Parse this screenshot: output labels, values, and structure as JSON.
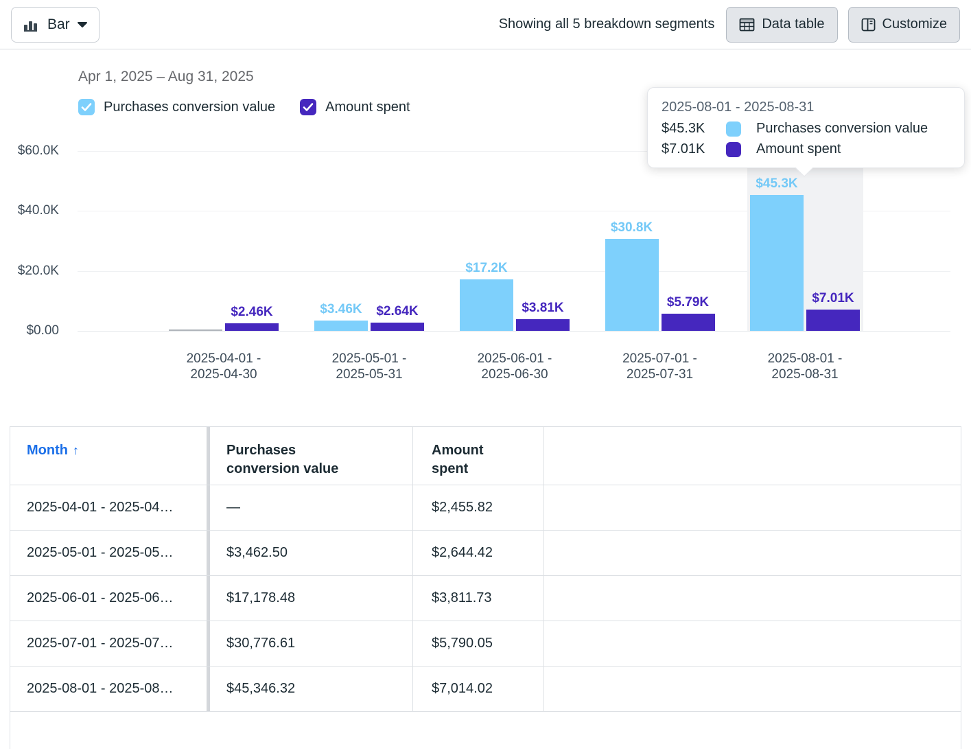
{
  "toolbar": {
    "chart_type_label": "Bar",
    "breakdown_text": "Showing all 5 breakdown segments",
    "data_table_label": "Data table",
    "customize_label": "Customize"
  },
  "chart": {
    "date_range": "Apr 1, 2025 – Aug 31, 2025"
  },
  "legend": {
    "items": [
      {
        "label": "Purchases conversion value",
        "color": "#7ed0fc",
        "checked": true
      },
      {
        "label": "Amount spent",
        "color": "#4527be",
        "checked": true
      }
    ]
  },
  "chart_data": {
    "type": "bar",
    "title": "Apr 1, 2025 – Aug 31, 2025",
    "ylim": [
      0,
      60000
    ],
    "grid": true,
    "legend_position": "top",
    "y_ticks": [
      {
        "value": 60000,
        "label": "$60.0K"
      },
      {
        "value": 40000,
        "label": "$40.0K"
      },
      {
        "value": 20000,
        "label": "$20.0K"
      },
      {
        "value": 0,
        "label": "$0.00"
      }
    ],
    "categories": [
      "2025-04-01 - 2025-04-30",
      "2025-05-01 - 2025-05-31",
      "2025-06-01 - 2025-06-30",
      "2025-07-01 - 2025-07-31",
      "2025-08-01 - 2025-08-31"
    ],
    "series": [
      {
        "name": "Purchases conversion value",
        "color": "#7ed0fc",
        "label_color": "#74c9f7",
        "values": [
          null,
          3462.5,
          17178.48,
          30776.61,
          45346.32
        ],
        "bar_labels": [
          "",
          "$3.46K",
          "$17.2K",
          "$30.8K",
          "$45.3K"
        ]
      },
      {
        "name": "Amount spent",
        "color": "#4527be",
        "label_color": "#4527be",
        "values": [
          2455.82,
          2644.42,
          3811.73,
          5790.05,
          7014.02
        ],
        "bar_labels": [
          "$2.46K",
          "$2.64K",
          "$3.81K",
          "$5.79K",
          "$7.01K"
        ]
      }
    ],
    "highlighted_index": 4
  },
  "tooltip": {
    "title": "2025-08-01 - 2025-08-31",
    "rows": [
      {
        "value": "$45.3K",
        "label": "Purchases conversion value",
        "color": "#7ed0fc"
      },
      {
        "value": "$7.01K",
        "label": "Amount spent",
        "color": "#4527be"
      }
    ]
  },
  "table": {
    "sort_icon": "↑",
    "columns": [
      {
        "label": "Month"
      },
      {
        "label": "Purchases conversion value"
      },
      {
        "label": "Amount spent"
      }
    ],
    "rows": [
      {
        "month": "2025-04-01 - 2025-04…",
        "pcv": "—",
        "spend": "$2,455.82"
      },
      {
        "month": "2025-05-01 - 2025-05…",
        "pcv": "$3,462.50",
        "spend": "$2,644.42"
      },
      {
        "month": "2025-06-01 - 2025-06…",
        "pcv": "$17,178.48",
        "spend": "$3,811.73"
      },
      {
        "month": "2025-07-01 - 2025-07…",
        "pcv": "$30,776.61",
        "spend": "$5,790.05"
      },
      {
        "month": "2025-08-01 - 2025-08…",
        "pcv": "$45,346.32",
        "spend": "$7,014.02"
      }
    ]
  },
  "colors": {
    "accent_light_blue": "#7ed0fc",
    "accent_purple": "#4527be",
    "link_blue": "#1b6fe8",
    "axis_text": "#3e4c59",
    "hover_band": "#f1f2f4"
  }
}
